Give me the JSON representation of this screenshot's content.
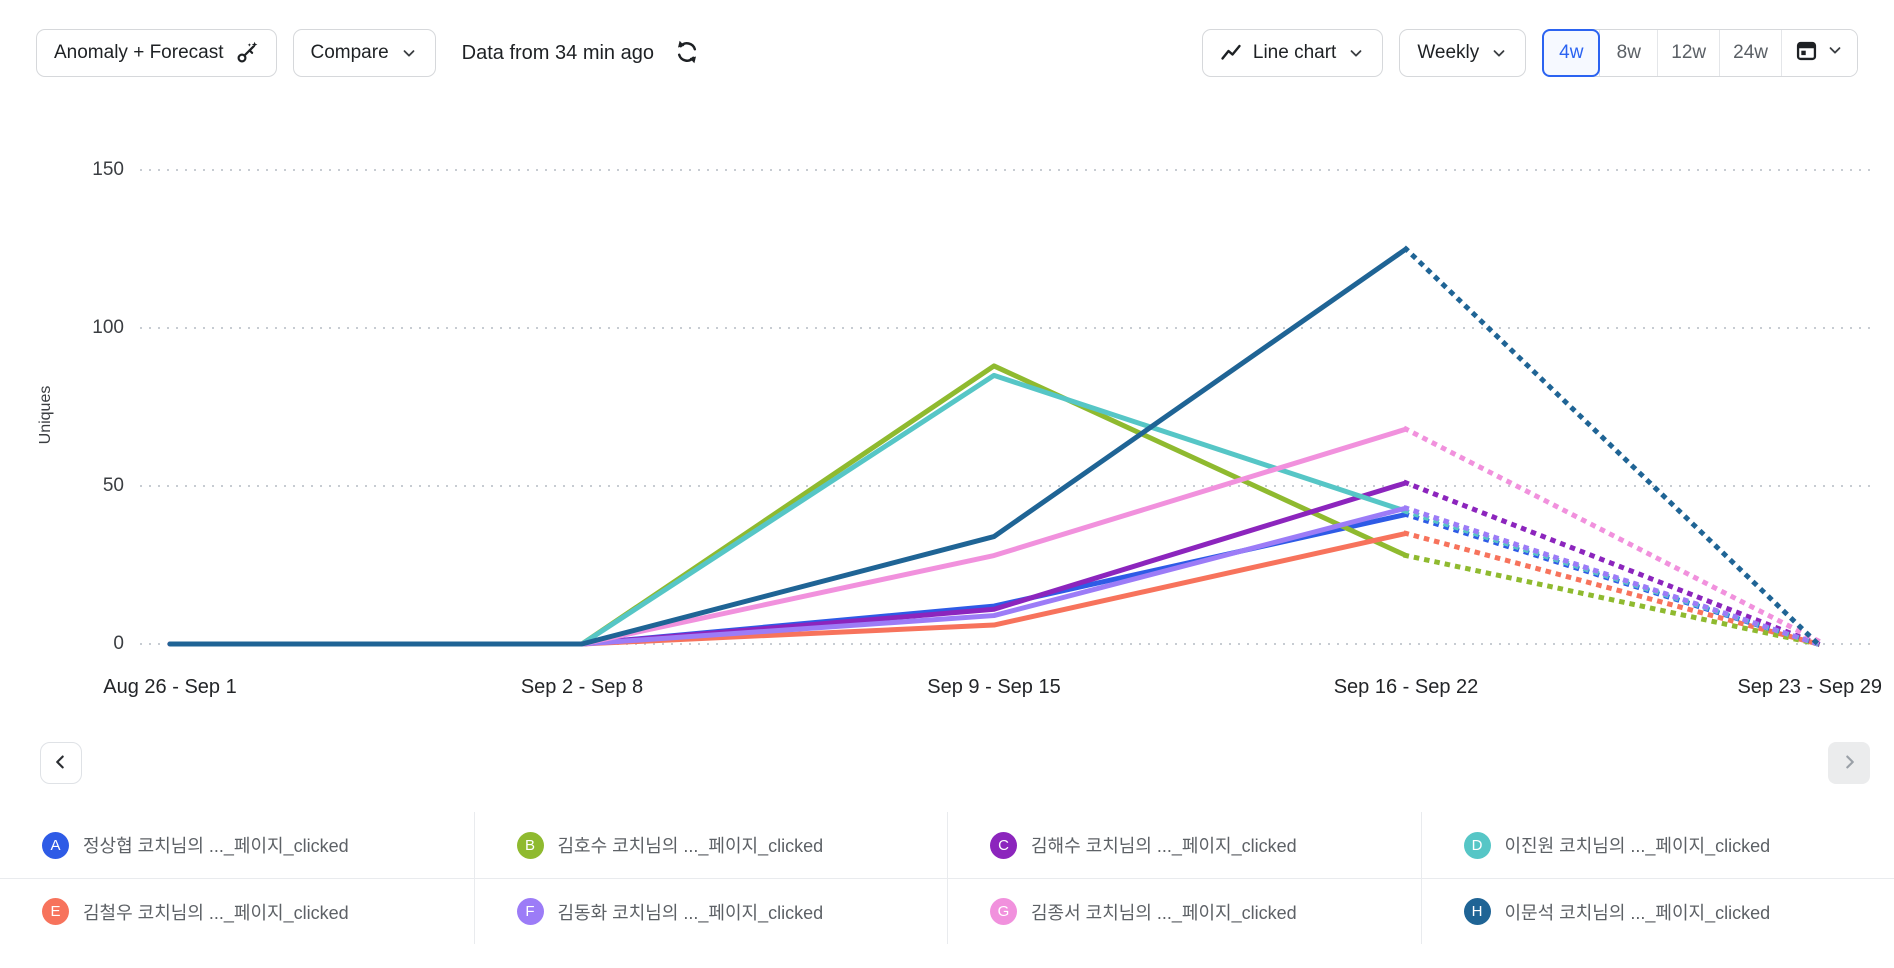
{
  "toolbar": {
    "anomaly_forecast_label": "Anomaly + Forecast",
    "compare_label": "Compare",
    "data_freshness": "Data from 34 min ago",
    "chart_type_label": "Line chart",
    "granularity_label": "Weekly",
    "range_options": [
      "4w",
      "8w",
      "12w",
      "24w"
    ],
    "range_selected": "4w"
  },
  "icons": {
    "anomaly_forecast_button": "magic-key-icon",
    "compare_button": "chevron-down-icon",
    "refresh_button": "sync-arrows-icon",
    "chart_type_button": [
      "line-chart-icon",
      "chevron-down-icon"
    ],
    "granularity_button": "chevron-down-icon",
    "calendar_button": [
      "calendar-icon",
      "chevron-down-icon"
    ],
    "legend_prev_button": "chevron-left-icon",
    "legend_next_button": "chevron-right-icon"
  },
  "colors": {
    "range_active_accent": "#2B63F1",
    "button_border": "#D6D8DB",
    "gridline": "#C7CCD2",
    "axis_text": "#3A3D41",
    "legend_text": "#5D6166",
    "next_button_disabled_bg": "#EBECED"
  },
  "legend_nav": {
    "prev_enabled": true,
    "next_enabled": false
  },
  "chart_data": {
    "type": "line",
    "title": "",
    "xlabel": "",
    "ylabel": "Uniques",
    "categories": [
      "Aug 26 - Sep 1",
      "Sep 2 - Sep 8",
      "Sep 9 - Sep 15",
      "Sep 16 - Sep 22",
      "Sep 23 - Sep 29"
    ],
    "y_ticks": [
      0,
      50,
      100,
      150
    ],
    "ylim": [
      0,
      150
    ],
    "grid": "dotted-horizontal",
    "legend_position": "bottom",
    "forecast_from_index": 3,
    "forecast_style": "dotted",
    "series": [
      {
        "key": "A",
        "name": "정상협 코치님의 ..._페이지_clicked",
        "color": "#2E5BE6",
        "values": [
          0,
          0,
          12,
          41,
          0
        ]
      },
      {
        "key": "B",
        "name": "김호수 코치님의 ..._페이지_clicked",
        "color": "#8FBA2F",
        "values": [
          0,
          0,
          88,
          28,
          0
        ]
      },
      {
        "key": "C",
        "name": "김해수 코치님의 ..._페이지_clicked",
        "color": "#8C25BD",
        "values": [
          0,
          0,
          11,
          51,
          0
        ]
      },
      {
        "key": "D",
        "name": "이진원 코치님의 ..._페이지_clicked",
        "color": "#56C6C6",
        "values": [
          0,
          0,
          85,
          42,
          0
        ]
      },
      {
        "key": "E",
        "name": "김철우 코치님의 ..._페이지_clicked",
        "color": "#F7735C",
        "values": [
          0,
          0,
          6,
          35,
          0
        ]
      },
      {
        "key": "F",
        "name": "김동화 코치님의 ..._페이지_clicked",
        "color": "#9C7CF7",
        "values": [
          0,
          0,
          9,
          43,
          0
        ]
      },
      {
        "key": "G",
        "name": "김종서 코치님의 ..._페이지_clicked",
        "color": "#F191DD",
        "values": [
          0,
          0,
          28,
          68,
          1
        ]
      },
      {
        "key": "H",
        "name": "이문석 코치님의 ..._페이지_clicked",
        "color": "#1F6495",
        "values": [
          0,
          0,
          34,
          125,
          0
        ]
      }
    ]
  }
}
